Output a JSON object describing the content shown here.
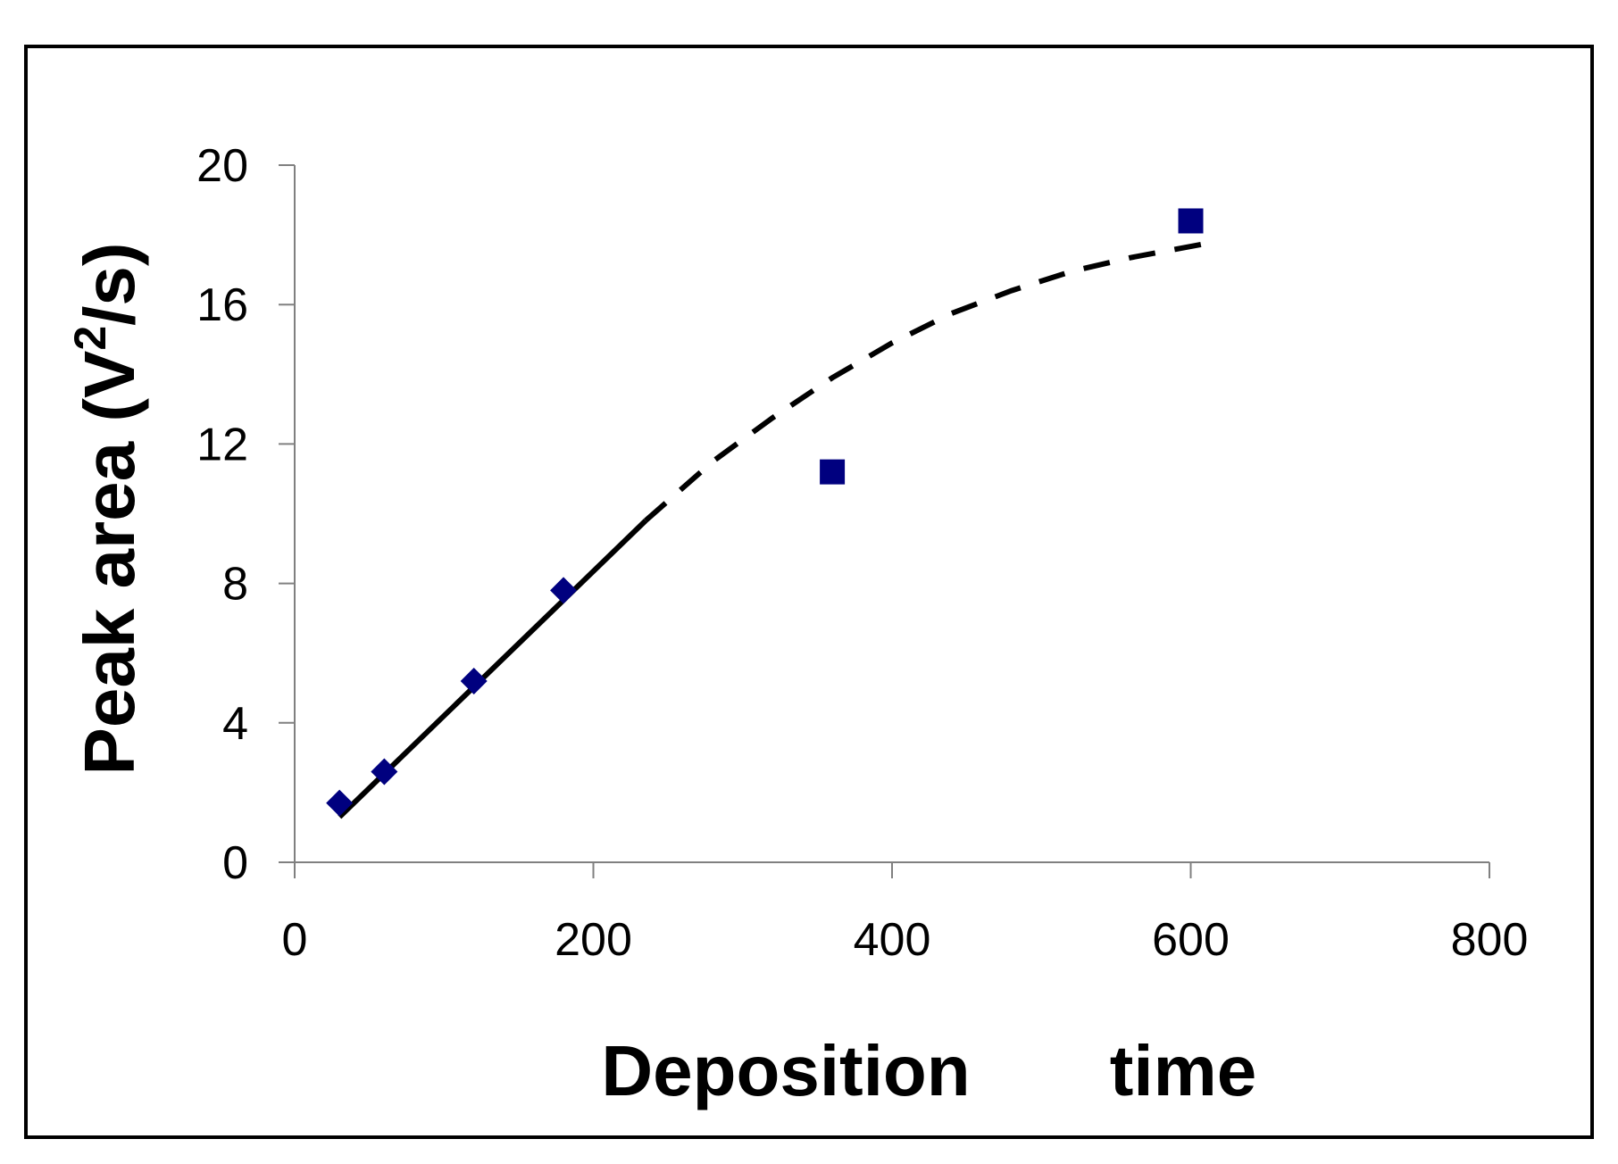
{
  "chart_data": {
    "type": "scatter",
    "xlabel_words": [
      "Deposition",
      "time"
    ],
    "ylabel": "Peak area (V",
    "ylabel_sup": "2",
    "ylabel_end": "/s)",
    "xlim": [
      0,
      800
    ],
    "ylim": [
      0,
      20
    ],
    "xticks": [
      0,
      200,
      400,
      600,
      800
    ],
    "yticks": [
      0,
      4,
      8,
      12,
      16,
      20
    ],
    "grid": false,
    "legend": "none",
    "series": [
      {
        "marker": "diamond",
        "color": "#00007f",
        "x": [
          30,
          60,
          120,
          180
        ],
        "y": [
          1.7,
          2.6,
          5.2,
          7.8
        ]
      },
      {
        "marker": "square",
        "color": "#00007f",
        "x": [
          360,
          600
        ],
        "y": [
          11.2,
          18.4
        ]
      }
    ],
    "trendlines": [
      {
        "style": "solid",
        "x": [
          30,
          235
        ],
        "y": [
          1.3,
          9.8
        ]
      },
      {
        "style": "dashed",
        "x": [
          235,
          280,
          320,
          360,
          400,
          440,
          480,
          520,
          560,
          610
        ],
        "y": [
          9.8,
          11.5,
          12.75,
          13.9,
          14.9,
          15.75,
          16.4,
          16.95,
          17.35,
          17.75
        ]
      }
    ]
  }
}
